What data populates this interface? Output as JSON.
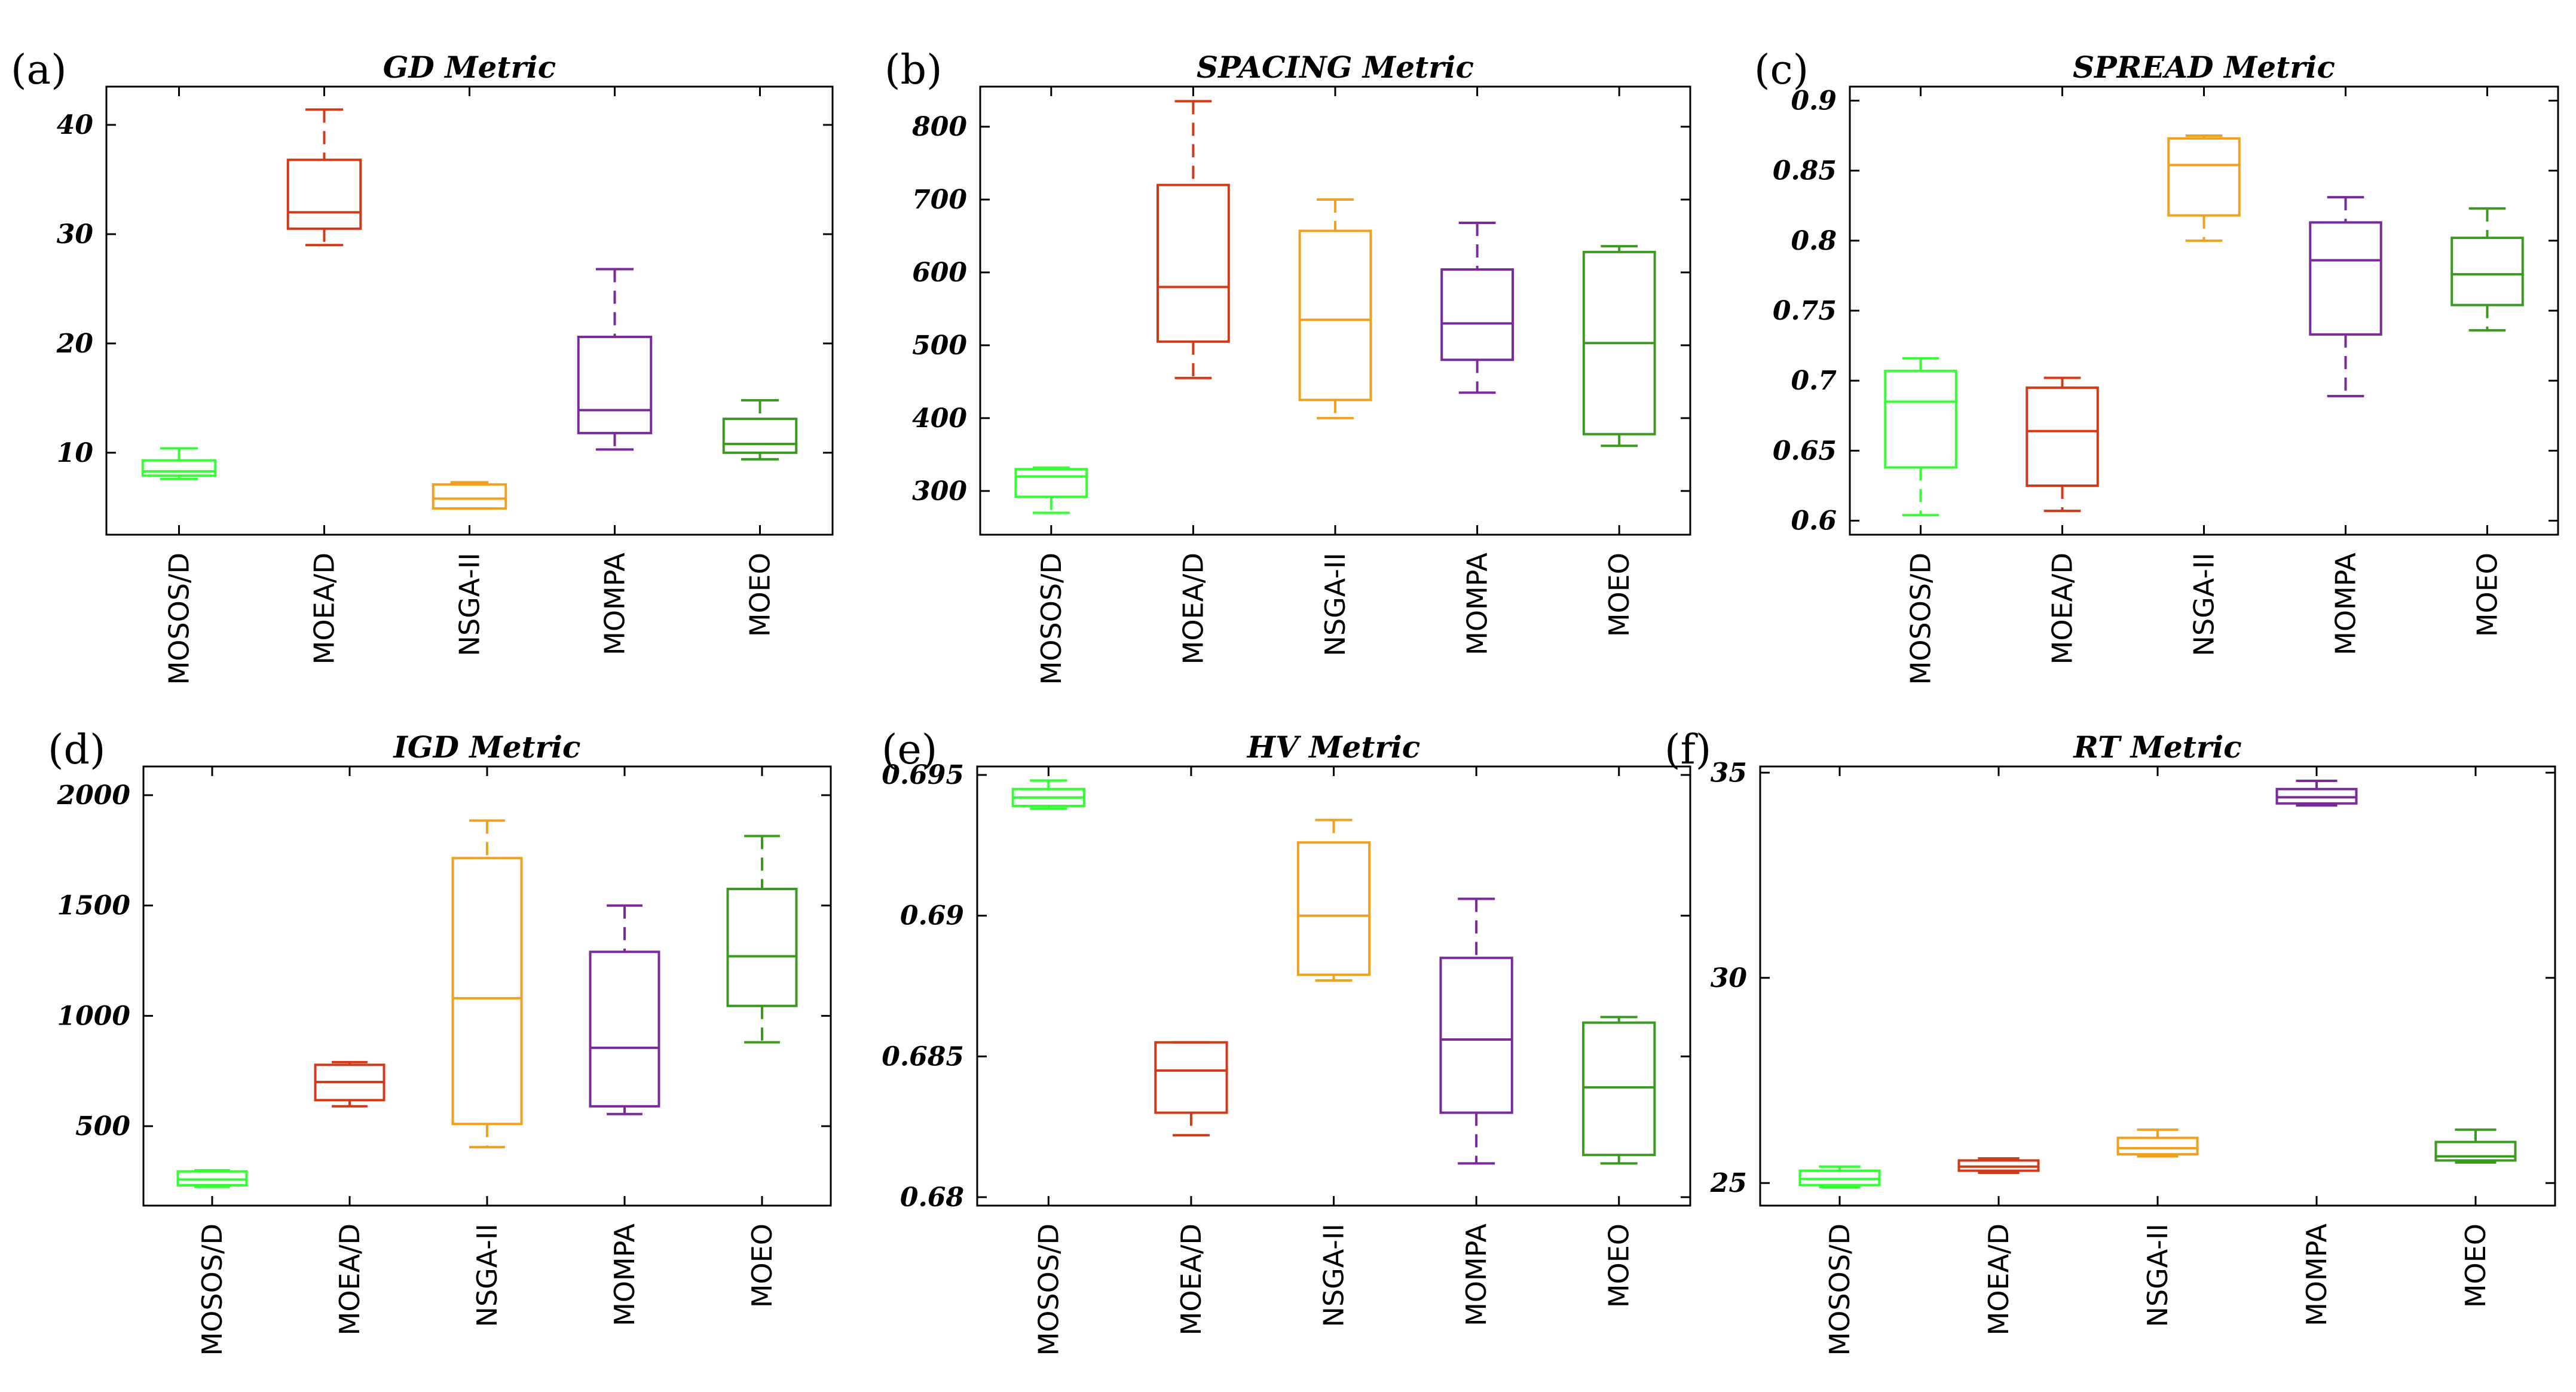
{
  "algorithms": [
    "MOSOS/D",
    "MOEA/D",
    "NSGA-II",
    "MOMPA",
    "MOEO"
  ],
  "colors": [
    "#33ff33",
    "#d03a18",
    "#f0a020",
    "#7a2a9a",
    "#3a9a20"
  ],
  "chart_data": [
    {
      "type": "box",
      "panel_label": "(a)",
      "title": "GD Metric",
      "categories": [
        "MOSOS/D",
        "MOEA/D",
        "NSGA-II",
        "MOMPA",
        "MOEO"
      ],
      "ylim": [
        2.5,
        43.5
      ],
      "yticks": [
        10,
        20,
        30,
        40
      ],
      "ytick_labels": [
        "10",
        "20",
        "30",
        "40"
      ],
      "boxes": [
        {
          "min": 7.6,
          "q1": 7.9,
          "median": 8.3,
          "q3": 9.3,
          "max": 10.4
        },
        {
          "min": 29.0,
          "q1": 30.5,
          "median": 32.0,
          "q3": 36.8,
          "max": 41.4
        },
        {
          "min": 4.9,
          "q1": 4.9,
          "median": 5.8,
          "q3": 7.1,
          "max": 7.3
        },
        {
          "min": 10.3,
          "q1": 11.8,
          "median": 13.9,
          "q3": 20.6,
          "max": 26.8
        },
        {
          "min": 9.4,
          "q1": 10.0,
          "median": 10.8,
          "q3": 13.1,
          "max": 14.8
        }
      ]
    },
    {
      "type": "box",
      "panel_label": "(b)",
      "title": "SPACING Metric",
      "categories": [
        "MOSOS/D",
        "MOEA/D",
        "NSGA-II",
        "MOMPA",
        "MOEO"
      ],
      "ylim": [
        240,
        855
      ],
      "yticks": [
        300,
        400,
        500,
        600,
        700,
        800
      ],
      "ytick_labels": [
        "300",
        "400",
        "500",
        "600",
        "700",
        "800"
      ],
      "boxes": [
        {
          "min": 270,
          "q1": 292,
          "median": 320,
          "q3": 330,
          "max": 332
        },
        {
          "min": 455,
          "q1": 505,
          "median": 580,
          "q3": 720,
          "max": 835
        },
        {
          "min": 400,
          "q1": 425,
          "median": 535,
          "q3": 657,
          "max": 700
        },
        {
          "min": 435,
          "q1": 480,
          "median": 530,
          "q3": 604,
          "max": 668
        },
        {
          "min": 362,
          "q1": 378,
          "median": 503,
          "q3": 628,
          "max": 636
        }
      ]
    },
    {
      "type": "box",
      "panel_label": "(c)",
      "title": "SPREAD Metric",
      "categories": [
        "MOSOS/D",
        "MOEA/D",
        "NSGA-II",
        "MOMPA",
        "MOEO"
      ],
      "ylim": [
        0.59,
        0.91
      ],
      "yticks": [
        0.6,
        0.65,
        0.7,
        0.75,
        0.8,
        0.85,
        0.9
      ],
      "ytick_labels": [
        "0.6",
        "0.65",
        "0.7",
        "0.75",
        "0.8",
        "0.85",
        "0.9"
      ],
      "boxes": [
        {
          "min": 0.604,
          "q1": 0.638,
          "median": 0.685,
          "q3": 0.707,
          "max": 0.716
        },
        {
          "min": 0.607,
          "q1": 0.625,
          "median": 0.664,
          "q3": 0.695,
          "max": 0.702
        },
        {
          "min": 0.8,
          "q1": 0.818,
          "median": 0.854,
          "q3": 0.873,
          "max": 0.875
        },
        {
          "min": 0.689,
          "q1": 0.733,
          "median": 0.786,
          "q3": 0.813,
          "max": 0.831
        },
        {
          "min": 0.736,
          "q1": 0.754,
          "median": 0.776,
          "q3": 0.802,
          "max": 0.823
        }
      ]
    },
    {
      "type": "box",
      "panel_label": "(d)",
      "title": "IGD Metric",
      "categories": [
        "MOSOS/D",
        "MOEA/D",
        "NSGA-II",
        "MOMPA",
        "MOEO"
      ],
      "ylim": [
        140,
        2130
      ],
      "yticks": [
        500,
        1000,
        1500,
        2000
      ],
      "ytick_labels": [
        "500",
        "1000",
        "1500",
        "2000"
      ],
      "boxes": [
        {
          "min": 225,
          "q1": 232,
          "median": 258,
          "q3": 295,
          "max": 300
        },
        {
          "min": 590,
          "q1": 618,
          "median": 700,
          "q3": 778,
          "max": 790
        },
        {
          "min": 405,
          "q1": 510,
          "median": 1080,
          "q3": 1715,
          "max": 1885
        },
        {
          "min": 555,
          "q1": 590,
          "median": 855,
          "q3": 1290,
          "max": 1500
        },
        {
          "min": 880,
          "q1": 1045,
          "median": 1270,
          "q3": 1575,
          "max": 1815
        }
      ]
    },
    {
      "type": "box",
      "panel_label": "(e)",
      "title": "HV Metric",
      "categories": [
        "MOSOS/D",
        "MOEA/D",
        "NSGA-II",
        "MOMPA",
        "MOEO"
      ],
      "ylim": [
        0.6797,
        0.6953
      ],
      "yticks": [
        0.68,
        0.685,
        0.69,
        0.695
      ],
      "ytick_labels": [
        "0.68",
        "0.685",
        "0.69",
        "0.695"
      ],
      "boxes": [
        {
          "min": 0.6938,
          "q1": 0.6939,
          "median": 0.6942,
          "q3": 0.6945,
          "max": 0.6948
        },
        {
          "min": 0.6822,
          "q1": 0.683,
          "median": 0.6845,
          "q3": 0.6855,
          "max": 0.6855
        },
        {
          "min": 0.6877,
          "q1": 0.6879,
          "median": 0.69,
          "q3": 0.6926,
          "max": 0.6934
        },
        {
          "min": 0.6812,
          "q1": 0.683,
          "median": 0.6856,
          "q3": 0.6885,
          "max": 0.6906
        },
        {
          "min": 0.6812,
          "q1": 0.6815,
          "median": 0.6839,
          "q3": 0.6862,
          "max": 0.6864
        }
      ]
    },
    {
      "type": "box",
      "panel_label": "(f)",
      "title": "RT Metric",
      "categories": [
        "MOSOS/D",
        "MOEA/D",
        "NSGA-II",
        "MOMPA",
        "MOEO"
      ],
      "ylim": [
        24.45,
        35.15
      ],
      "yticks": [
        25,
        30,
        35
      ],
      "ytick_labels": [
        "25",
        "30",
        "35"
      ],
      "boxes": [
        {
          "min": 24.9,
          "q1": 24.95,
          "median": 25.1,
          "q3": 25.3,
          "max": 25.4
        },
        {
          "min": 25.25,
          "q1": 25.3,
          "median": 25.4,
          "q3": 25.55,
          "max": 25.6
        },
        {
          "min": 25.65,
          "q1": 25.7,
          "median": 25.85,
          "q3": 26.1,
          "max": 26.3
        },
        {
          "min": 34.2,
          "q1": 34.25,
          "median": 34.4,
          "q3": 34.6,
          "max": 34.8
        },
        {
          "min": 25.5,
          "q1": 25.55,
          "median": 25.65,
          "q3": 26.0,
          "max": 26.3
        }
      ]
    }
  ]
}
